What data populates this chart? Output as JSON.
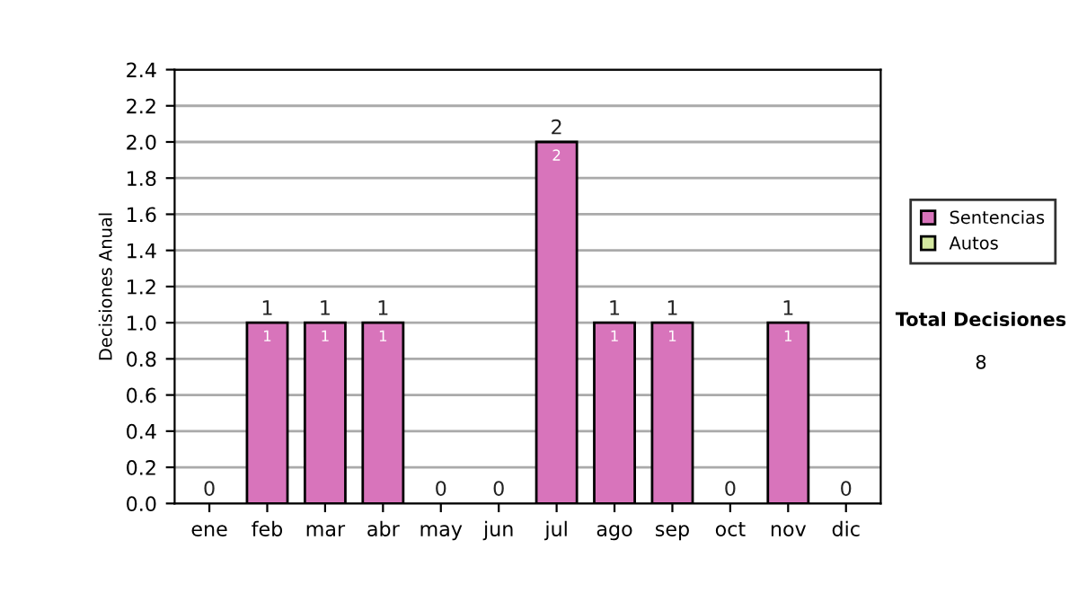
{
  "chart_data": {
    "type": "bar",
    "ylabel": "Decisiones Anual",
    "stacked": true,
    "categories": [
      "ene",
      "feb",
      "mar",
      "abr",
      "may",
      "jun",
      "jul",
      "ago",
      "sep",
      "oct",
      "nov",
      "dic"
    ],
    "series": [
      {
        "name": "Sentencias",
        "color": "#d874bb",
        "values": [
          0,
          1,
          1,
          1,
          0,
          0,
          2,
          1,
          1,
          0,
          1,
          0
        ],
        "value_labels": [
          null,
          "1",
          "1",
          "1",
          null,
          null,
          "2",
          "1",
          "1",
          null,
          "1",
          null
        ]
      },
      {
        "name": "Autos",
        "color": "#d4e8a0",
        "values": [
          0,
          0,
          0,
          0,
          0,
          0,
          0,
          0,
          0,
          0,
          0,
          0
        ]
      }
    ],
    "totals": [
      "0",
      "1",
      "1",
      "1",
      "0",
      "0",
      "2",
      "1",
      "1",
      "0",
      "1",
      "0"
    ],
    "ylim": [
      0,
      2.4
    ],
    "yticks": [
      "0.0",
      "0.2",
      "0.4",
      "0.6",
      "0.8",
      "1.0",
      "1.2",
      "1.4",
      "1.6",
      "1.8",
      "2.0",
      "2.2",
      "2.4"
    ],
    "grid": "y",
    "legend": "right",
    "annotations": [
      "Total Decisiones",
      "8"
    ]
  }
}
